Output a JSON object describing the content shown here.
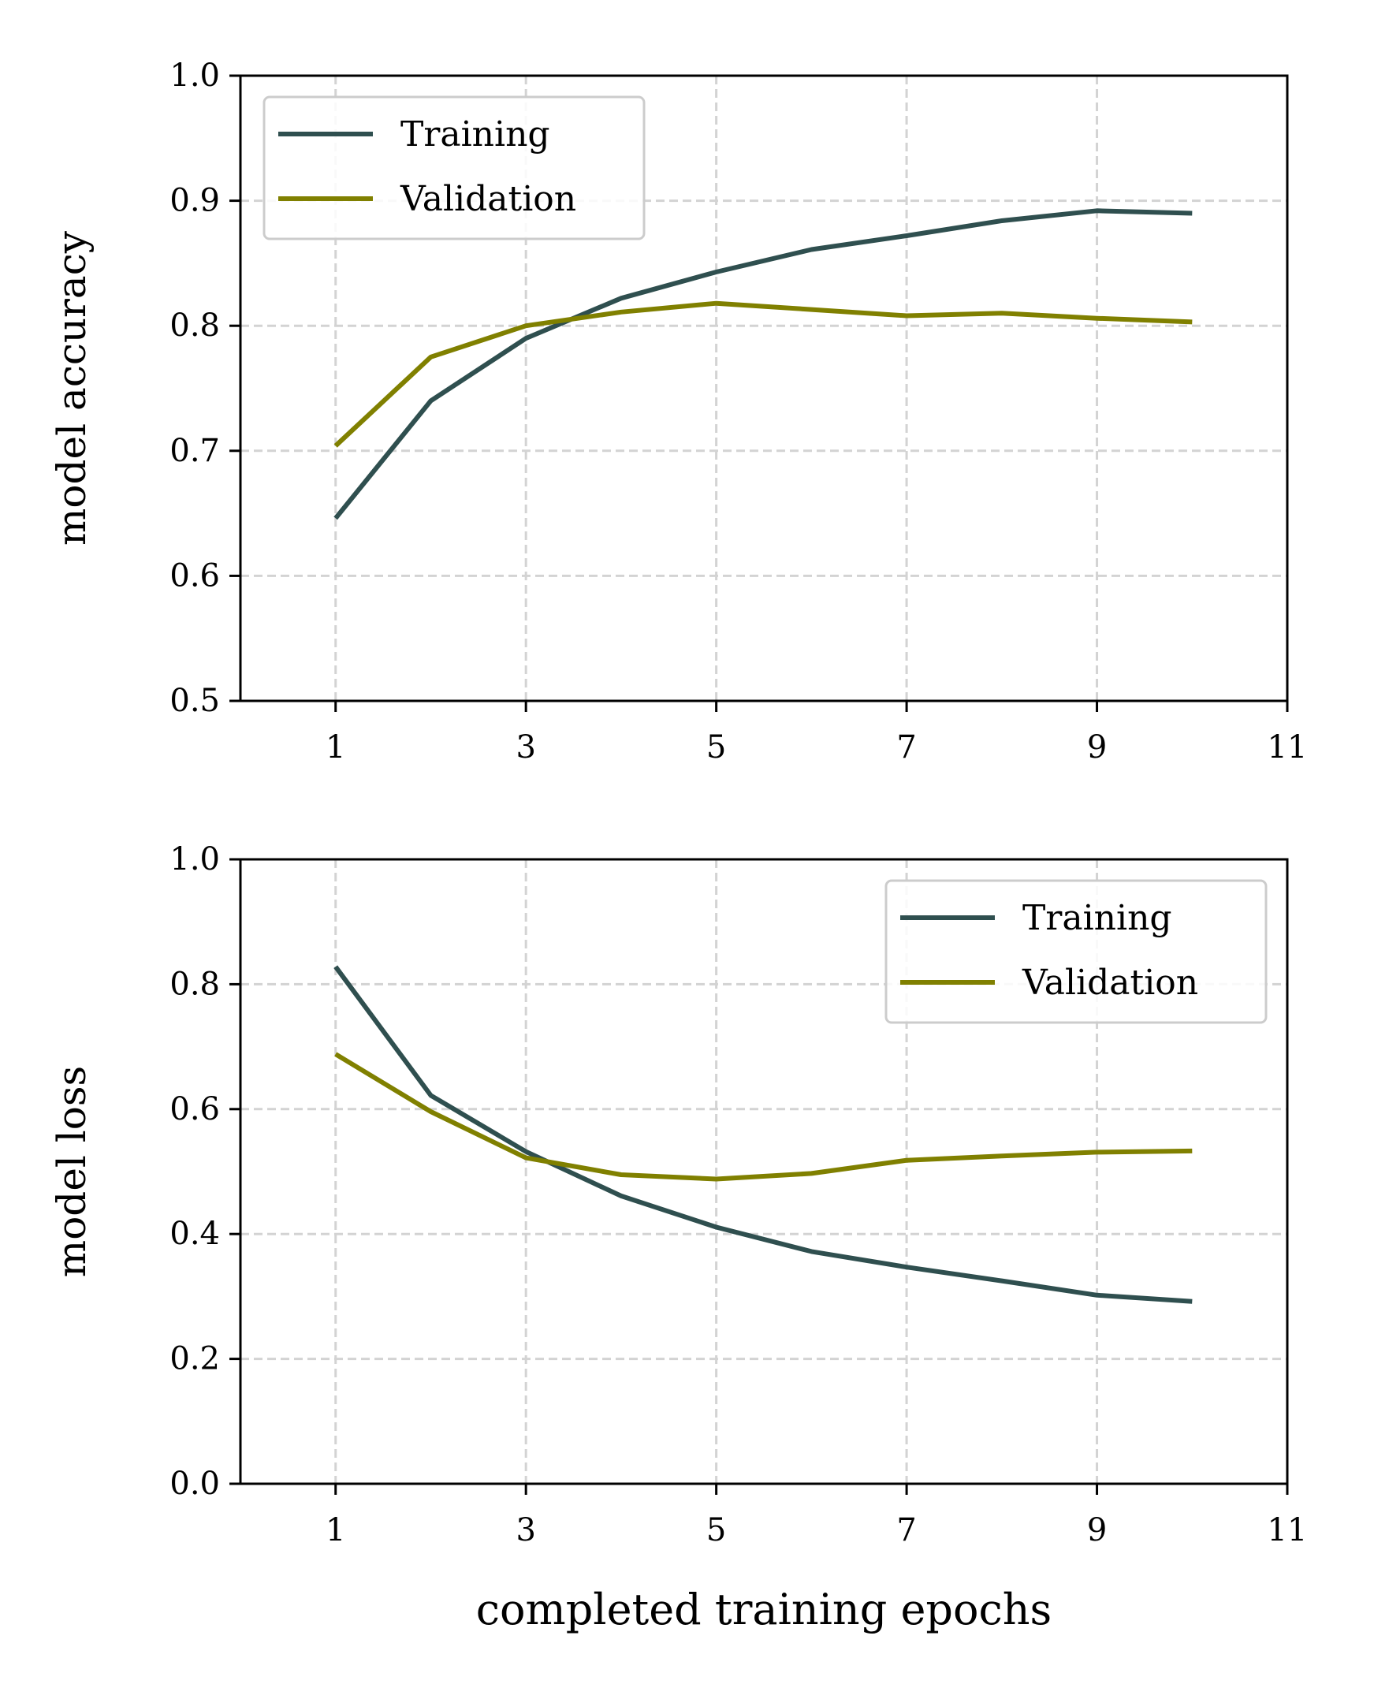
{
  "colors": {
    "training": "#2f4f4f",
    "validation": "#808000",
    "grid": "#d3d3d3",
    "axes": "#000000"
  },
  "chart_data": [
    {
      "type": "line",
      "xlabel": "",
      "ylabel": "model accuracy",
      "xlim": [
        0,
        11
      ],
      "ylim": [
        0.5,
        1.0
      ],
      "xticks": [
        1,
        3,
        5,
        7,
        9,
        11
      ],
      "xtick_labels": [
        "1",
        "3",
        "5",
        "7",
        "9",
        "11"
      ],
      "yticks": [
        0.5,
        0.6,
        0.7,
        0.8,
        0.9,
        1.0
      ],
      "ytick_labels": [
        "0.5",
        "0.6",
        "0.7",
        "0.8",
        "0.9",
        "1.0"
      ],
      "grid": true,
      "legend": "top-left",
      "x": [
        1,
        2,
        3,
        4,
        5,
        6,
        7,
        8,
        9,
        10
      ],
      "series": [
        {
          "name": "Training",
          "values": [
            0.646,
            0.74,
            0.79,
            0.822,
            0.843,
            0.861,
            0.872,
            0.884,
            0.892,
            0.89
          ]
        },
        {
          "name": "Validation",
          "values": [
            0.704,
            0.775,
            0.8,
            0.811,
            0.818,
            0.813,
            0.808,
            0.81,
            0.806,
            0.803
          ]
        }
      ]
    },
    {
      "type": "line",
      "xlabel": "completed training epochs",
      "ylabel": "model loss",
      "xlim": [
        0,
        11
      ],
      "ylim": [
        0.0,
        1.0
      ],
      "xticks": [
        1,
        3,
        5,
        7,
        9,
        11
      ],
      "xtick_labels": [
        "1",
        "3",
        "5",
        "7",
        "9",
        "11"
      ],
      "yticks": [
        0.0,
        0.2,
        0.4,
        0.6,
        0.8,
        1.0
      ],
      "ytick_labels": [
        "0.0",
        "0.2",
        "0.4",
        "0.6",
        "0.8",
        "1.0"
      ],
      "grid": true,
      "legend": "top-right",
      "x": [
        1,
        2,
        3,
        4,
        5,
        6,
        7,
        8,
        9,
        10
      ],
      "series": [
        {
          "name": "Training",
          "values": [
            0.828,
            0.622,
            0.532,
            0.461,
            0.411,
            0.372,
            0.347,
            0.325,
            0.302,
            0.292
          ]
        },
        {
          "name": "Validation",
          "values": [
            0.688,
            0.596,
            0.522,
            0.495,
            0.488,
            0.497,
            0.518,
            0.525,
            0.531,
            0.533
          ]
        }
      ]
    }
  ]
}
